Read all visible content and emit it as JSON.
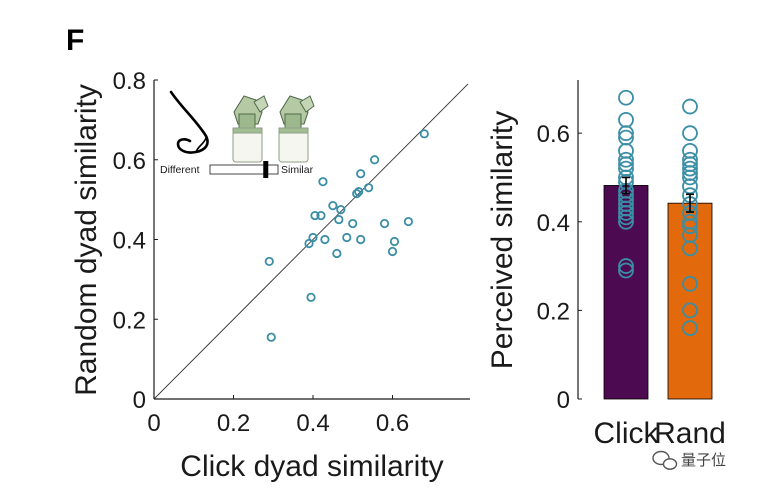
{
  "panel_label": "F",
  "inset": {
    "left_label": "Different",
    "right_label": "Similar",
    "slider_value": 0.82
  },
  "watermark": {
    "text": "量子位"
  },
  "colors": {
    "marker": "#3a8ea6",
    "click_bar": "#4c0a50",
    "rand_bar": "#e2690c",
    "axis": "#1a1a1a",
    "inset_device": "#a9c29a"
  },
  "chart_data": [
    {
      "type": "scatter",
      "title": "",
      "xlabel": "Click dyad similarity",
      "ylabel": "Random dyad similarity",
      "xlim": [
        0,
        0.8
      ],
      "ylim": [
        0,
        0.8
      ],
      "xticks": [
        0,
        0.2,
        0.4,
        0.6
      ],
      "xtick_labels": [
        "0",
        "0.2",
        "0.4",
        "0.6"
      ],
      "yticks": [
        0,
        0.2,
        0.4,
        0.6,
        0.8
      ],
      "ytick_labels": [
        "0",
        "0.2",
        "0.4",
        "0.6",
        "0.8"
      ],
      "reference_line": "identity",
      "points": [
        {
          "x": 0.29,
          "y": 0.345
        },
        {
          "x": 0.295,
          "y": 0.155
        },
        {
          "x": 0.39,
          "y": 0.39
        },
        {
          "x": 0.395,
          "y": 0.255
        },
        {
          "x": 0.4,
          "y": 0.405
        },
        {
          "x": 0.405,
          "y": 0.46
        },
        {
          "x": 0.42,
          "y": 0.46
        },
        {
          "x": 0.425,
          "y": 0.545
        },
        {
          "x": 0.43,
          "y": 0.4
        },
        {
          "x": 0.45,
          "y": 0.485
        },
        {
          "x": 0.46,
          "y": 0.365
        },
        {
          "x": 0.465,
          "y": 0.45
        },
        {
          "x": 0.47,
          "y": 0.475
        },
        {
          "x": 0.485,
          "y": 0.405
        },
        {
          "x": 0.5,
          "y": 0.44
        },
        {
          "x": 0.51,
          "y": 0.515
        },
        {
          "x": 0.515,
          "y": 0.52
        },
        {
          "x": 0.52,
          "y": 0.4
        },
        {
          "x": 0.52,
          "y": 0.565
        },
        {
          "x": 0.54,
          "y": 0.53
        },
        {
          "x": 0.555,
          "y": 0.6
        },
        {
          "x": 0.58,
          "y": 0.44
        },
        {
          "x": 0.6,
          "y": 0.37
        },
        {
          "x": 0.605,
          "y": 0.395
        },
        {
          "x": 0.64,
          "y": 0.445
        },
        {
          "x": 0.68,
          "y": 0.665
        }
      ]
    },
    {
      "type": "bar",
      "title": "",
      "xlabel": "",
      "ylabel": "Perceived similarity",
      "ylim": [
        0,
        0.72
      ],
      "yticks": [
        0,
        0.2,
        0.4,
        0.6
      ],
      "ytick_labels": [
        "0",
        "0.2",
        "0.4",
        "0.6"
      ],
      "categories": [
        "Click",
        "Rand"
      ],
      "values": [
        0.482,
        0.442
      ],
      "errors": [
        0.018,
        0.02
      ],
      "points": [
        [
          0.68,
          0.63,
          0.6,
          0.59,
          0.56,
          0.54,
          0.53,
          0.52,
          0.5,
          0.49,
          0.47,
          0.46,
          0.45,
          0.44,
          0.43,
          0.42,
          0.41,
          0.4,
          0.3,
          0.29
        ],
        [
          0.66,
          0.6,
          0.56,
          0.54,
          0.53,
          0.52,
          0.51,
          0.5,
          0.48,
          0.46,
          0.44,
          0.42,
          0.4,
          0.39,
          0.37,
          0.34,
          0.26,
          0.2,
          0.16
        ]
      ]
    }
  ]
}
